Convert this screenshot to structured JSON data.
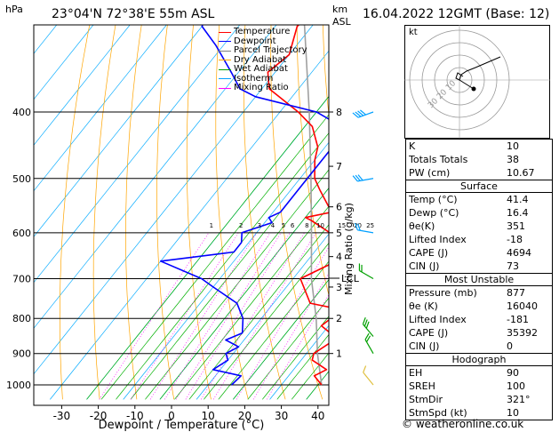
{
  "header": {
    "hpa_label": "hPa",
    "location": "23°04'N  72°38'E  55m  ASL",
    "km_label": "km",
    "asl_label": "ASL",
    "datetime": "16.04.2022  12GMT  (Base: 12)"
  },
  "legend": [
    {
      "label": "Temperature",
      "color": "#ff0000"
    },
    {
      "label": "Dewpoint",
      "color": "#0000ff"
    },
    {
      "label": "Parcel Trajectory",
      "color": "#808080"
    },
    {
      "label": "Dry Adiabat",
      "color": "#ffa500"
    },
    {
      "label": "Wet Adiabat",
      "color": "#00a000"
    },
    {
      "label": "Isotherm",
      "color": "#00a0ff"
    },
    {
      "label": "Mixing Ratio",
      "color": "#ff00ff"
    }
  ],
  "colors": {
    "temperature": "#ff0000",
    "dewpoint": "#0000ff",
    "parcel": "#a0a0a0",
    "dry_adiabat": "#ffa500",
    "wet_adiabat": "#00b000",
    "isotherm": "#00aaff",
    "mixing_ratio": "#ff00ff"
  },
  "chart_data": {
    "type": "skew-t log-p diagram",
    "xlabel": "Dewpoint / Temperature (°C)",
    "ylabel_left": "hPa",
    "ylabel_right": "Mixing Ratio (g/kg)",
    "x_ticks": [
      "-30",
      "-20",
      "-10",
      "0",
      "10",
      "20",
      "30",
      "40"
    ],
    "pressure_ticks": [
      "400",
      "500",
      "600",
      "700",
      "800",
      "900",
      "1000"
    ],
    "km_ticks": [
      {
        "label": "8",
        "p": 400
      },
      {
        "label": "7",
        "p": 480
      },
      {
        "label": "6",
        "p": 550
      },
      {
        "label": "5",
        "p": 600
      },
      {
        "label": "4",
        "p": 650
      },
      {
        "label": "3",
        "p": 720
      },
      {
        "label": "2",
        "p": 800
      },
      {
        "label": "1",
        "p": 900
      }
    ],
    "lcl_label": "LCL",
    "lcl_pressure": 700,
    "mixing_ratio_labels": [
      "1",
      "2",
      "3",
      "4",
      "5",
      "6",
      "8",
      "10",
      "15",
      "20",
      "25"
    ],
    "temperature": [
      [
        1000,
        41
      ],
      [
        970,
        37
      ],
      [
        950,
        39
      ],
      [
        920,
        33
      ],
      [
        900,
        32
      ],
      [
        870,
        34
      ],
      [
        840,
        32
      ],
      [
        820,
        28
      ],
      [
        800,
        29
      ],
      [
        780,
        32
      ],
      [
        760,
        20
      ],
      [
        700,
        12
      ],
      [
        660,
        18
      ],
      [
        630,
        15
      ],
      [
        600,
        10
      ],
      [
        575,
        2
      ],
      [
        570,
        0
      ],
      [
        560,
        6
      ],
      [
        520,
        -2
      ],
      [
        500,
        -6
      ],
      [
        470,
        -10
      ],
      [
        450,
        -12
      ],
      [
        420,
        -18
      ],
      [
        400,
        -25
      ],
      [
        370,
        -38
      ],
      [
        350,
        -42
      ],
      [
        330,
        -40
      ],
      [
        300,
        -44
      ],
      [
        280,
        -42
      ],
      [
        260,
        -48
      ],
      [
        250,
        -52
      ]
    ],
    "dewpoint": [
      [
        1000,
        16.4
      ],
      [
        970,
        17
      ],
      [
        950,
        8
      ],
      [
        920,
        10
      ],
      [
        900,
        8
      ],
      [
        880,
        10
      ],
      [
        860,
        5
      ],
      [
        840,
        8
      ],
      [
        800,
        5
      ],
      [
        760,
        0
      ],
      [
        720,
        -10
      ],
      [
        700,
        -15
      ],
      [
        660,
        -30
      ],
      [
        640,
        -12
      ],
      [
        620,
        -12
      ],
      [
        600,
        -14
      ],
      [
        580,
        -8
      ],
      [
        570,
        -10
      ],
      [
        560,
        -8
      ],
      [
        520,
        -8
      ],
      [
        500,
        -8
      ],
      [
        460,
        -8
      ],
      [
        440,
        -8
      ],
      [
        420,
        -10
      ],
      [
        400,
        -20
      ],
      [
        380,
        -40
      ],
      [
        370,
        -46
      ],
      [
        350,
        -52
      ],
      [
        320,
        -62
      ],
      [
        300,
        -70
      ],
      [
        280,
        -72
      ],
      [
        260,
        -78
      ],
      [
        250,
        -80
      ]
    ],
    "parcel": [
      [
        1000,
        41
      ],
      [
        900,
        33
      ],
      [
        800,
        25
      ],
      [
        700,
        15
      ],
      [
        600,
        5
      ],
      [
        500,
        -7
      ],
      [
        400,
        -22
      ],
      [
        300,
        -42
      ],
      [
        250,
        -56
      ]
    ],
    "wind_barbs": [
      {
        "p": 1000,
        "dir": 321,
        "spd": 10
      },
      {
        "p": 900,
        "dir": 330,
        "spd": 15
      },
      {
        "p": 850,
        "dir": 320,
        "spd": 25
      },
      {
        "p": 700,
        "dir": 300,
        "spd": 20
      },
      {
        "p": 600,
        "dir": 280,
        "spd": 20
      },
      {
        "p": 500,
        "dir": 260,
        "spd": 30
      },
      {
        "p": 400,
        "dir": 250,
        "spd": 35
      }
    ]
  },
  "hodograph": {
    "label": "kt",
    "ring_labels": [
      "10",
      "20",
      "30"
    ]
  },
  "indices": {
    "rows": [
      {
        "label": "K",
        "value": "10"
      },
      {
        "label": "Totals Totals",
        "value": "38"
      },
      {
        "label": "PW (cm)",
        "value": "10.67"
      }
    ]
  },
  "surface": {
    "title": "Surface",
    "rows": [
      {
        "label": "Temp (°C)",
        "value": "41.4"
      },
      {
        "label": "Dewp (°C)",
        "value": "16.4"
      },
      {
        "label": "θe(K)",
        "value": "351"
      },
      {
        "label": "Lifted Index",
        "value": "-18"
      },
      {
        "label": "CAPE (J)",
        "value": "4694"
      },
      {
        "label": "CIN (J)",
        "value": "73"
      }
    ]
  },
  "most_unstable": {
    "title": "Most Unstable",
    "rows": [
      {
        "label": "Pressure (mb)",
        "value": "877"
      },
      {
        "label": "θe (K)",
        "value": "16040"
      },
      {
        "label": "Lifted Index",
        "value": "-181"
      },
      {
        "label": "CAPE (J)",
        "value": "35392"
      },
      {
        "label": "CIN (J)",
        "value": "0"
      }
    ]
  },
  "hodograph_table": {
    "title": "Hodograph",
    "rows": [
      {
        "label": "EH",
        "value": "90"
      },
      {
        "label": "SREH",
        "value": "100"
      },
      {
        "label": "StmDir",
        "value": "321°"
      },
      {
        "label": "StmSpd (kt)",
        "value": "10"
      }
    ]
  },
  "footer": "© weatheronline.co.uk"
}
